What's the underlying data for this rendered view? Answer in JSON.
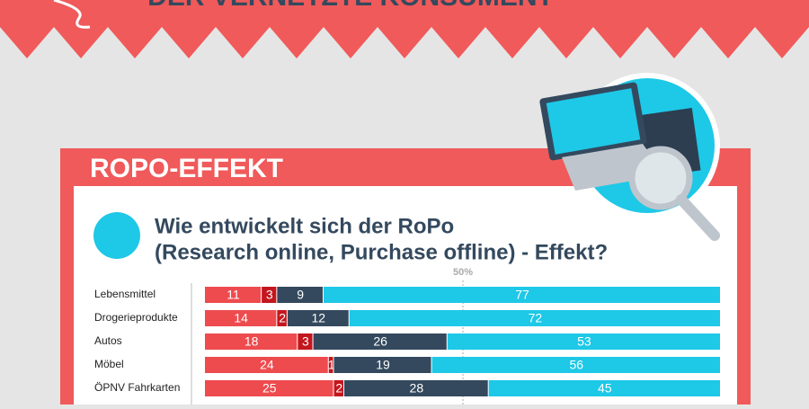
{
  "header": {
    "title": "DER VERNETZTE KONSUMENT"
  },
  "section": {
    "title": "ROPO-EFFEKT"
  },
  "chart_data": {
    "type": "stacked_bar",
    "title": "Wie entwickelt sich der RoPo",
    "subtitle": "(Research online, Purchase offline)  - Effekt?",
    "categories": [
      "Lebensmittel",
      "Drogerieprodukte",
      "Autos",
      "Möbel",
      "ÖPNV Fahrkarten"
    ],
    "series": [
      {
        "color": "#ee4b4f",
        "values": [
          11,
          14,
          18,
          24,
          25
        ]
      },
      {
        "color": "#c3161d",
        "values": [
          3,
          2,
          3,
          1,
          2
        ]
      },
      {
        "color": "#34495e",
        "values": [
          9,
          12,
          26,
          19,
          28
        ]
      },
      {
        "color": "#1ec8e7",
        "values": [
          77,
          72,
          53,
          56,
          45
        ]
      }
    ],
    "xlim": [
      0,
      100
    ],
    "reference_line": {
      "value": 50,
      "label": "50%"
    }
  }
}
